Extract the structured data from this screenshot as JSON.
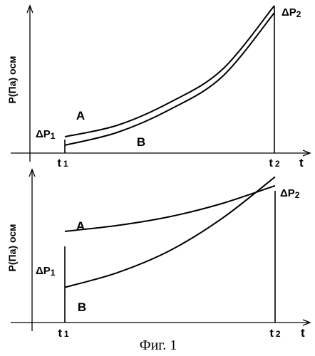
{
  "figure_caption": "Фиг. 1",
  "chart_data": [
    {
      "type": "line",
      "ylabel": "P(Па) осм",
      "xlabel": "t",
      "tick_labels": [
        "t",
        "1",
        "t",
        "2"
      ],
      "annotations": {
        "dp1": {
          "sym": "ΔP",
          "sub": "1"
        },
        "dp2": {
          "sym": "ΔP",
          "sub": "2"
        }
      },
      "xlim": [
        0,
        1
      ],
      "ylim": [
        0,
        1
      ],
      "series": [
        {
          "name": "A",
          "x": [
            0,
            0.25,
            0.5,
            0.75,
            1.0
          ],
          "y": [
            0.08,
            0.16,
            0.32,
            0.55,
            1.0
          ]
        },
        {
          "name": "B",
          "x": [
            0,
            0.25,
            0.5,
            0.75,
            1.0
          ],
          "y": [
            0.02,
            0.11,
            0.27,
            0.5,
            0.95
          ]
        }
      ]
    },
    {
      "type": "line",
      "ylabel": "P(Па) осм",
      "xlabel": "t",
      "tick_labels": [
        "t",
        "1",
        "t",
        "2"
      ],
      "annotations": {
        "dp1": {
          "sym": "ΔP",
          "sub": "1"
        },
        "dp2": {
          "sym": "ΔP",
          "sub": "2"
        }
      },
      "xlim": [
        0,
        1
      ],
      "ylim": [
        0,
        1
      ],
      "series": [
        {
          "name": "A",
          "x": [
            0,
            0.25,
            0.5,
            0.75,
            1.0
          ],
          "y": [
            0.58,
            0.62,
            0.68,
            0.77,
            0.89
          ]
        },
        {
          "name": "B",
          "x": [
            0,
            0.25,
            0.5,
            0.75,
            1.0
          ],
          "y": [
            0.2,
            0.3,
            0.45,
            0.67,
            0.95
          ]
        }
      ]
    }
  ]
}
